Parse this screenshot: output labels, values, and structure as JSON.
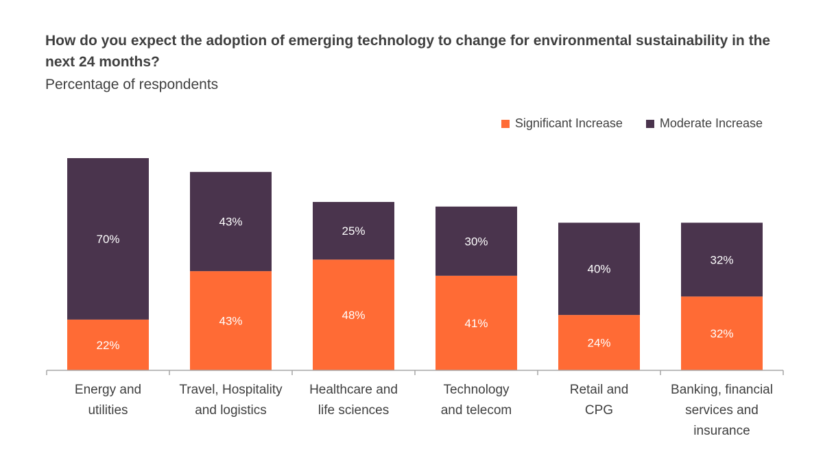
{
  "title": "How do you expect the adoption of emerging technology to change for environmental sustainability in the next 24 months?",
  "subtitle": "Percentage of respondents",
  "colors": {
    "significant": "#ff6b35",
    "moderate": "#4a344d",
    "text": "#3f3f3f",
    "axis": "#a6a6a6"
  },
  "chart_data": {
    "type": "bar",
    "stacked": true,
    "categories": [
      [
        "Energy and",
        "utilities"
      ],
      [
        "Travel, Hospitality",
        "and logistics"
      ],
      [
        "Healthcare and",
        "life sciences"
      ],
      [
        "Technology",
        "and telecom"
      ],
      [
        "Retail and",
        "CPG"
      ],
      [
        "Banking, financial",
        "services and",
        "insurance"
      ]
    ],
    "series": [
      {
        "name": "Significant Increase",
        "values": [
          22,
          43,
          48,
          41,
          24,
          32
        ],
        "labels": [
          "22%",
          "43%",
          "48%",
          "41%",
          "24%",
          "32%"
        ]
      },
      {
        "name": "Moderate Increase",
        "values": [
          70,
          43,
          25,
          30,
          40,
          32
        ],
        "labels": [
          "70%",
          "43%",
          "25%",
          "30%",
          "40%",
          "32%"
        ]
      }
    ],
    "ylim": [
      0,
      92
    ],
    "grid": false,
    "legend_position": "top-right"
  }
}
